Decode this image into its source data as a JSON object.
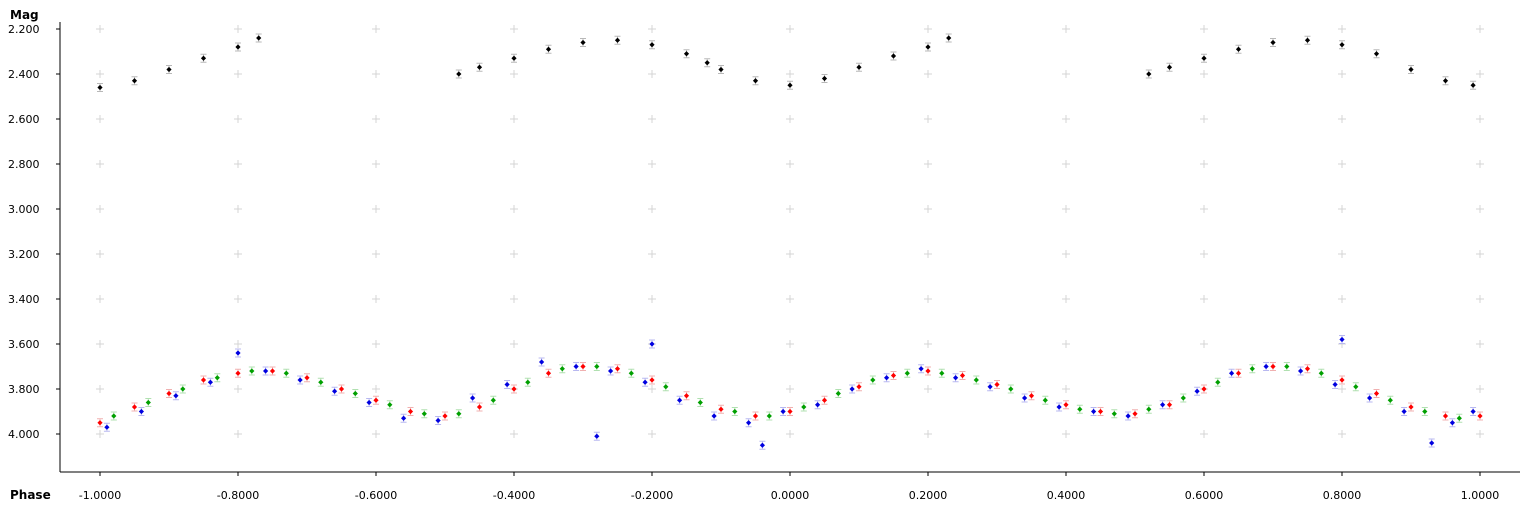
{
  "chart_data": {
    "type": "scatter",
    "ylabel": "Mag",
    "xlabel": "Phase",
    "xlim": [
      -1.09,
      1.09
    ],
    "ylim": [
      2.18,
      4.18
    ],
    "y_inverted": true,
    "grid": "plus-markers",
    "x_ticks": [
      "-1.0000",
      "-0.8000",
      "-0.6000",
      "-0.4000",
      "-0.2000",
      "0.0000",
      "0.2000",
      "0.4000",
      "0.6000",
      "0.8000",
      "1.0000"
    ],
    "y_ticks": [
      "2.200",
      "2.400",
      "2.600",
      "2.800",
      "3.000",
      "3.200",
      "3.400",
      "3.600",
      "3.800",
      "4.000"
    ],
    "x_tick_values": [
      -1.0,
      -0.8,
      -0.6,
      -0.4,
      -0.2,
      0.0,
      0.2,
      0.4,
      0.6,
      0.8,
      1.0
    ],
    "y_tick_values": [
      2.2,
      2.4,
      2.6,
      2.8,
      3.0,
      3.2,
      3.4,
      3.6,
      3.8,
      4.0
    ],
    "series": [
      {
        "color": "#000000",
        "err_color": "#b8b8b8",
        "x": [
          -1.0,
          -0.95,
          -0.9,
          -0.85,
          -0.8,
          -0.77,
          -0.48,
          -0.45,
          -0.4,
          -0.35,
          -0.3,
          -0.25,
          -0.2,
          -0.15,
          -0.12,
          -0.1,
          -0.05,
          0.0,
          0.05,
          0.1,
          0.15,
          0.2,
          0.23,
          0.52,
          0.55,
          0.6,
          0.65,
          0.7,
          0.75,
          0.8,
          0.85,
          0.9,
          0.95,
          0.99
        ],
        "y": [
          2.46,
          2.43,
          2.38,
          2.33,
          2.28,
          2.24,
          2.4,
          2.37,
          2.33,
          2.29,
          2.26,
          2.25,
          2.27,
          2.31,
          2.35,
          2.38,
          2.43,
          2.45,
          2.42,
          2.37,
          2.32,
          2.28,
          2.24,
          2.4,
          2.37,
          2.33,
          2.29,
          2.26,
          2.25,
          2.27,
          2.31,
          2.38,
          2.43,
          2.45
        ]
      },
      {
        "color": "#ff0000",
        "err_color": "#f0b0b0",
        "x": [
          -1.0,
          -0.95,
          -0.9,
          -0.85,
          -0.8,
          -0.75,
          -0.7,
          -0.65,
          -0.6,
          -0.55,
          -0.5,
          -0.45,
          -0.4,
          -0.35,
          -0.3,
          -0.25,
          -0.2,
          -0.15,
          -0.1,
          -0.05,
          0.0,
          0.05,
          0.1,
          0.15,
          0.2,
          0.25,
          0.3,
          0.35,
          0.4,
          0.45,
          0.5,
          0.55,
          0.6,
          0.65,
          0.7,
          0.75,
          0.8,
          0.85,
          0.9,
          0.95,
          1.0
        ],
        "y": [
          3.95,
          3.88,
          3.82,
          3.76,
          3.73,
          3.72,
          3.75,
          3.8,
          3.85,
          3.9,
          3.92,
          3.88,
          3.8,
          3.73,
          3.7,
          3.71,
          3.76,
          3.83,
          3.89,
          3.92,
          3.9,
          3.85,
          3.79,
          3.74,
          3.72,
          3.74,
          3.78,
          3.83,
          3.87,
          3.9,
          3.91,
          3.87,
          3.8,
          3.73,
          3.7,
          3.71,
          3.76,
          3.82,
          3.88,
          3.92,
          3.92
        ]
      },
      {
        "color": "#00a000",
        "err_color": "#b0e0b0",
        "x": [
          -0.98,
          -0.93,
          -0.88,
          -0.83,
          -0.78,
          -0.73,
          -0.68,
          -0.63,
          -0.58,
          -0.53,
          -0.48,
          -0.43,
          -0.38,
          -0.33,
          -0.28,
          -0.23,
          -0.18,
          -0.13,
          -0.08,
          -0.03,
          0.02,
          0.07,
          0.12,
          0.17,
          0.22,
          0.27,
          0.32,
          0.37,
          0.42,
          0.47,
          0.52,
          0.57,
          0.62,
          0.67,
          0.72,
          0.77,
          0.82,
          0.87,
          0.92,
          0.97
        ],
        "y": [
          3.92,
          3.86,
          3.8,
          3.75,
          3.72,
          3.73,
          3.77,
          3.82,
          3.87,
          3.91,
          3.91,
          3.85,
          3.77,
          3.71,
          3.7,
          3.73,
          3.79,
          3.86,
          3.9,
          3.92,
          3.88,
          3.82,
          3.76,
          3.73,
          3.73,
          3.76,
          3.8,
          3.85,
          3.89,
          3.91,
          3.89,
          3.84,
          3.77,
          3.71,
          3.7,
          3.73,
          3.79,
          3.85,
          3.9,
          3.93
        ]
      },
      {
        "color": "#0000e0",
        "err_color": "#b8b8f0",
        "x": [
          -0.99,
          -0.94,
          -0.89,
          -0.84,
          -0.8,
          -0.76,
          -0.71,
          -0.66,
          -0.61,
          -0.56,
          -0.51,
          -0.46,
          -0.41,
          -0.36,
          -0.31,
          -0.28,
          -0.26,
          -0.21,
          -0.2,
          -0.16,
          -0.11,
          -0.06,
          -0.04,
          -0.01,
          0.04,
          0.09,
          0.14,
          0.19,
          0.24,
          0.29,
          0.34,
          0.39,
          0.44,
          0.49,
          0.54,
          0.59,
          0.64,
          0.69,
          0.74,
          0.79,
          0.8,
          0.84,
          0.89,
          0.93,
          0.96,
          0.99
        ],
        "y": [
          3.97,
          3.9,
          3.83,
          3.77,
          3.64,
          3.72,
          3.76,
          3.81,
          3.86,
          3.93,
          3.94,
          3.84,
          3.78,
          3.68,
          3.7,
          4.01,
          3.72,
          3.77,
          3.6,
          3.85,
          3.92,
          3.95,
          4.05,
          3.9,
          3.87,
          3.8,
          3.75,
          3.71,
          3.75,
          3.79,
          3.84,
          3.88,
          3.9,
          3.92,
          3.87,
          3.81,
          3.73,
          3.7,
          3.72,
          3.78,
          3.58,
          3.84,
          3.9,
          4.04,
          3.95,
          3.9
        ]
      }
    ]
  }
}
